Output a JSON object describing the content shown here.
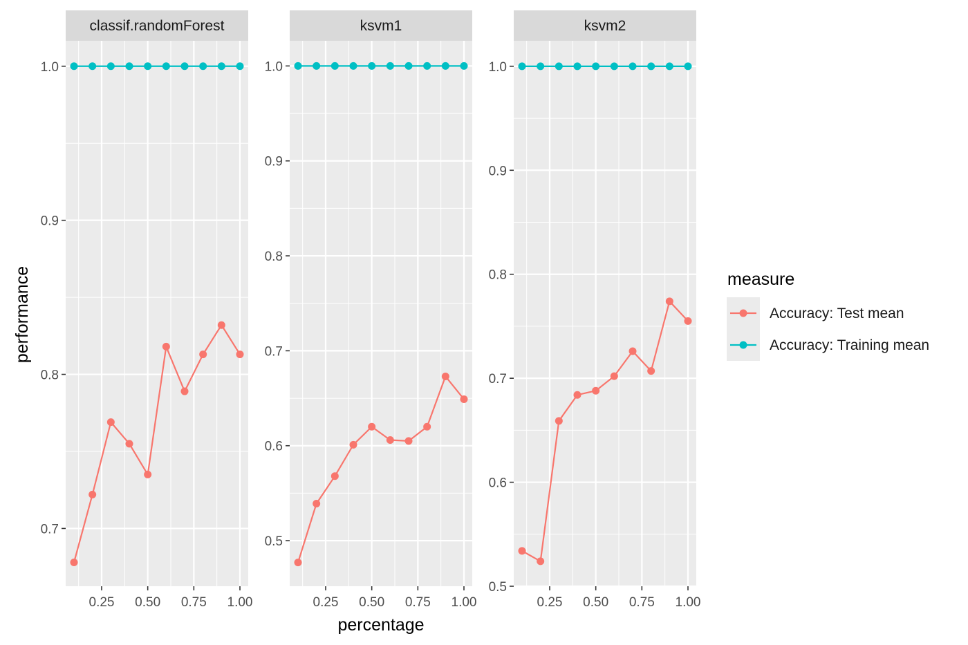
{
  "chart_data": {
    "type": "line",
    "xlabel": "percentage",
    "ylabel": "performance",
    "grid": true,
    "legend": {
      "title": "measure",
      "position": "right",
      "entries": [
        {
          "label": "Accuracy: Test mean",
          "color": "#F8766D"
        },
        {
          "label": "Accuracy: Training mean",
          "color": "#00BFC4"
        }
      ]
    },
    "panels": [
      {
        "name": "classif.randomForest",
        "x": [
          0.1,
          0.2,
          0.3,
          0.4,
          0.5,
          0.6,
          0.7,
          0.8,
          0.9,
          1.0
        ],
        "xlim": [
          0.055,
          1.045
        ],
        "xticks": [
          0.25,
          0.5,
          0.75,
          1.0
        ],
        "xtick_labels": [
          "0.25",
          "0.50",
          "0.75",
          "1.00"
        ],
        "ylim": [
          0.6625,
          1.0165
        ],
        "yticks": [
          0.7,
          0.8,
          0.9,
          1.0
        ],
        "ytick_labels": [
          "0.7",
          "0.8",
          "0.9",
          "1.0"
        ],
        "series": [
          {
            "name": "Accuracy: Test mean",
            "color": "#F8766D",
            "values": [
              0.678,
              0.722,
              0.769,
              0.755,
              0.735,
              0.818,
              0.789,
              0.813,
              0.832,
              0.813
            ]
          },
          {
            "name": "Accuracy: Training mean",
            "color": "#00BFC4",
            "values": [
              1.0,
              1.0,
              1.0,
              1.0,
              1.0,
              1.0,
              1.0,
              1.0,
              1.0,
              1.0
            ]
          }
        ]
      },
      {
        "name": "ksvm1",
        "x": [
          0.1,
          0.2,
          0.3,
          0.4,
          0.5,
          0.6,
          0.7,
          0.8,
          0.9,
          1.0
        ],
        "xlim": [
          0.055,
          1.045
        ],
        "xticks": [
          0.25,
          0.5,
          0.75,
          1.0
        ],
        "xtick_labels": [
          "0.25",
          "0.50",
          "0.75",
          "1.00"
        ],
        "ylim": [
          0.452,
          1.0265
        ],
        "yticks": [
          0.5,
          0.6,
          0.7,
          0.8,
          0.9,
          1.0
        ],
        "ytick_labels": [
          "0.5",
          "0.6",
          "0.7",
          "0.8",
          "0.9",
          "1.0"
        ],
        "series": [
          {
            "name": "Accuracy: Test mean",
            "color": "#F8766D",
            "values": [
              0.477,
              0.539,
              0.568,
              0.601,
              0.62,
              0.606,
              0.605,
              0.62,
              0.673,
              0.649
            ]
          },
          {
            "name": "Accuracy: Training mean",
            "color": "#00BFC4",
            "values": [
              1.0,
              1.0,
              1.0,
              1.0,
              1.0,
              1.0,
              1.0,
              1.0,
              1.0,
              1.0
            ]
          }
        ]
      },
      {
        "name": "ksvm2",
        "x": [
          0.1,
          0.2,
          0.3,
          0.4,
          0.5,
          0.6,
          0.7,
          0.8,
          0.9,
          1.0
        ],
        "xlim": [
          0.055,
          1.045
        ],
        "xticks": [
          0.25,
          0.5,
          0.75,
          1.0
        ],
        "xtick_labels": [
          "0.25",
          "0.50",
          "0.75",
          "1.00"
        ],
        "ylim": [
          0.5,
          1.0245
        ],
        "yticks": [
          0.5,
          0.6,
          0.7,
          0.8,
          0.9,
          1.0
        ],
        "ytick_labels": [
          "0.5",
          "0.6",
          "0.7",
          "0.8",
          "0.9",
          "1.0"
        ],
        "series": [
          {
            "name": "Accuracy: Test mean",
            "color": "#F8766D",
            "values": [
              0.534,
              0.524,
              0.659,
              0.684,
              0.688,
              0.702,
              0.726,
              0.707,
              0.774,
              0.755
            ]
          },
          {
            "name": "Accuracy: Training mean",
            "color": "#00BFC4",
            "values": [
              1.0,
              1.0,
              1.0,
              1.0,
              1.0,
              1.0,
              1.0,
              1.0,
              1.0,
              1.0
            ]
          }
        ]
      }
    ]
  }
}
